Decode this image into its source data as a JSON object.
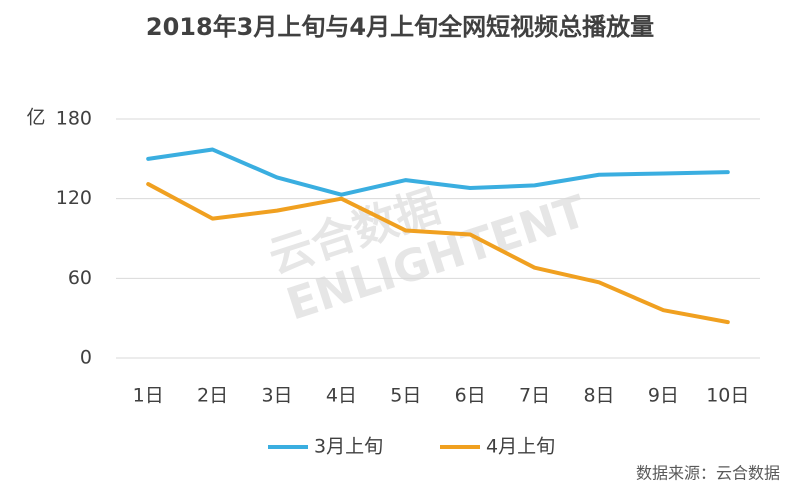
{
  "chart_data": {
    "type": "line",
    "title": "2018年3月上旬与4月上旬全网短视频总播放量",
    "y_unit": "亿",
    "categories": [
      "1日",
      "2日",
      "3日",
      "4日",
      "5日",
      "6日",
      "7日",
      "8日",
      "9日",
      "10日"
    ],
    "series": [
      {
        "name": "3月上旬",
        "color": "#3aaee0",
        "values": [
          150,
          157,
          136,
          123,
          134,
          128,
          130,
          138,
          139,
          140
        ]
      },
      {
        "name": "4月上旬",
        "color": "#f0a020",
        "values": [
          131,
          105,
          111,
          120,
          96,
          93,
          68,
          57,
          36,
          27
        ]
      }
    ],
    "ylim": [
      0,
      180
    ],
    "yticks": [
      0,
      60,
      120,
      180
    ],
    "grid": true,
    "legend": "bottom",
    "watermark": [
      "云合数据",
      "ENLIGHTENT"
    ],
    "source": "数据来源：云合数据"
  }
}
